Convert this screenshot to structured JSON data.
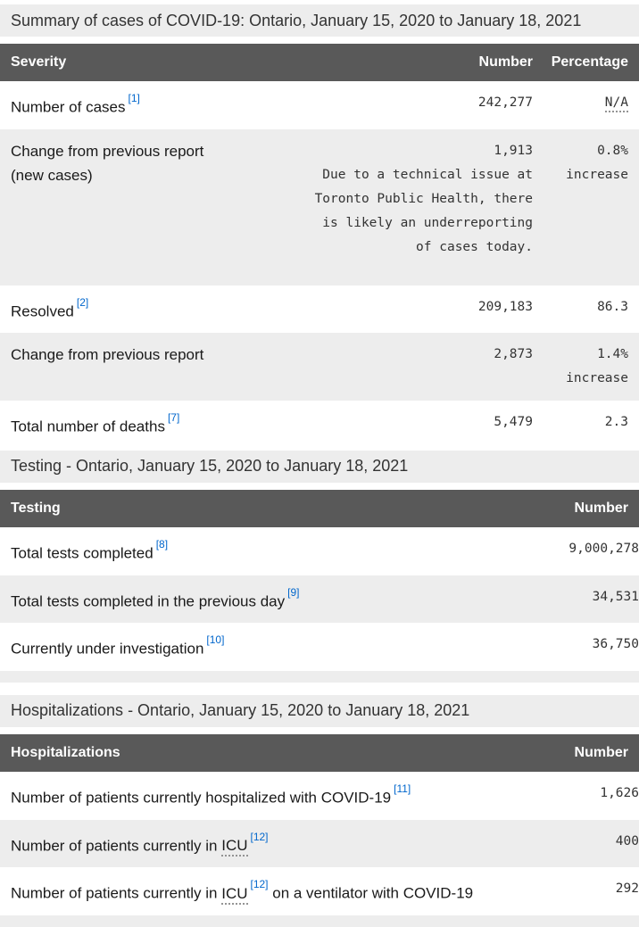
{
  "colors": {
    "table_header_bg": "#595959",
    "row_alt_bg": "#ededed",
    "section_title_bg": "#ededed",
    "link": "#0066cc",
    "body_text": "#1a1a1a"
  },
  "severity": {
    "title": "Summary of cases of COVID-19: Ontario, January 15, 2020 to January 18, 2021",
    "columns": {
      "label": "Severity",
      "number": "Number",
      "percentage": "Percentage"
    },
    "rows": {
      "cases": {
        "label": "Number of cases",
        "footnote": "[1]",
        "number": "242,277",
        "percentage": "N/A"
      },
      "change_new": {
        "label": "Change from previous report (new cases)",
        "number": "1,913",
        "note": "Due to a technical issue at Toronto Public Health, there is likely an underreporting of cases today.",
        "percentage": "0.8%",
        "percentage_line2": "increase"
      },
      "resolved": {
        "label": "Resolved",
        "footnote": "[2]",
        "number": "209,183",
        "percentage": "86.3"
      },
      "change_resolved": {
        "label": "Change from previous report",
        "number": "2,873",
        "percentage": "1.4%",
        "percentage_line2": "increase"
      },
      "deaths": {
        "label": "Total number of deaths",
        "footnote": "[7]",
        "number": "5,479",
        "percentage": "2.3"
      }
    }
  },
  "testing": {
    "title": "Testing - Ontario, January 15, 2020 to January 18, 2021",
    "columns": {
      "label": "Testing",
      "number": "Number"
    },
    "rows": {
      "total": {
        "label": "Total tests completed",
        "footnote": "[8]",
        "number": "9,000,278"
      },
      "previous_day": {
        "label": "Total tests completed in the previous day",
        "footnote": "[9]",
        "number": "34,531"
      },
      "investigation": {
        "label": "Currently under investigation",
        "footnote": "[10]",
        "number": "36,750"
      }
    }
  },
  "hospitalizations": {
    "title": "Hospitalizations - Ontario, January 15, 2020 to January 18, 2021",
    "columns": {
      "label": "Hospitalizations",
      "number": "Number"
    },
    "rows": {
      "hospitalized": {
        "label": "Number of patients currently hospitalized with COVID-19",
        "footnote": "[11]",
        "number": "1,626"
      },
      "icu": {
        "label_before": "Number of patients currently in ",
        "abbr": "ICU",
        "footnote": "[12]",
        "number": "400"
      },
      "icu_ventilator": {
        "label_before": "Number of patients currently in ",
        "abbr": "ICU",
        "footnote": "[12]",
        "label_after": " on a ventilator with COVID-19",
        "number": "292"
      }
    }
  }
}
